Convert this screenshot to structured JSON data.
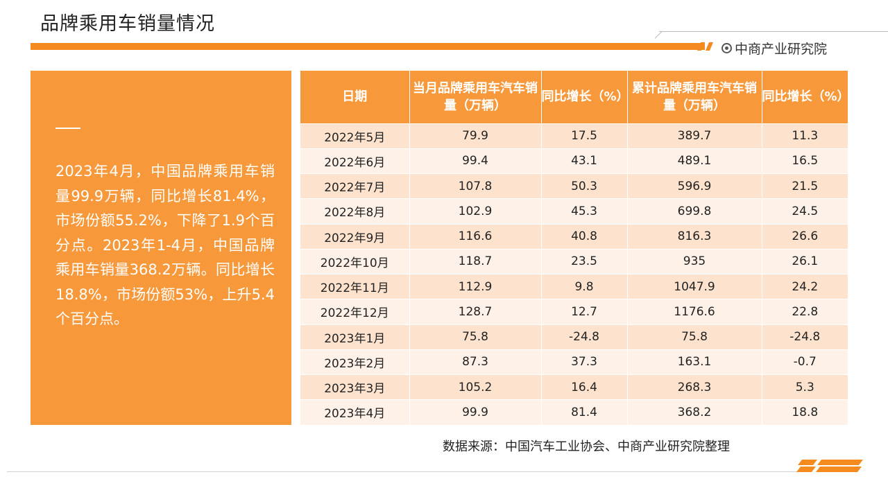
{
  "header": {
    "title": "品牌乘用车销量情况",
    "brand_name": "中商产业研究院",
    "accent_color": "#f58a1f"
  },
  "summary": {
    "text": "2023年4月，中国品牌乘用车销量99.9万辆，同比增长81.4%，市场份额55.2%，下降了1.9个百分点。2023年1-4月，中国品牌乘用车销量368.2万辆。同比增长18.8%，市场份额53%，上升5.4个百分点。",
    "background_color": "#f7993a"
  },
  "table": {
    "headers": [
      "日期",
      "当月品牌乘用车汽车销量（万辆）",
      "同比增长（%）",
      "累计品牌乘用车汽车销量（万辆）",
      "同比增长（%）"
    ],
    "rows": [
      [
        "2022年5月",
        "79.9",
        "17.5",
        "389.7",
        "11.3"
      ],
      [
        "2022年6月",
        "99.4",
        "43.1",
        "489.1",
        "16.5"
      ],
      [
        "2022年7月",
        "107.8",
        "50.3",
        "596.9",
        "21.5"
      ],
      [
        "2022年8月",
        "102.9",
        "45.3",
        "699.8",
        "24.5"
      ],
      [
        "2022年9月",
        "116.6",
        "40.8",
        "816.3",
        "26.6"
      ],
      [
        "2022年10月",
        "118.7",
        "23.5",
        "935",
        "26.1"
      ],
      [
        "2022年11月",
        "112.9",
        "9.8",
        "1047.9",
        "24.2"
      ],
      [
        "2022年12月",
        "128.7",
        "12.7",
        "1176.6",
        "22.8"
      ],
      [
        "2023年1月",
        "75.8",
        "-24.8",
        "75.8",
        "-24.8"
      ],
      [
        "2023年2月",
        "87.3",
        "37.3",
        "163.1",
        "-0.7"
      ],
      [
        "2023年3月",
        "105.2",
        "16.4",
        "268.3",
        "5.3"
      ],
      [
        "2023年4月",
        "99.9",
        "81.4",
        "368.2",
        "18.8"
      ]
    ]
  },
  "footer": {
    "source": "数据来源：中国汽车工业协会、中商产业研究院整理"
  }
}
